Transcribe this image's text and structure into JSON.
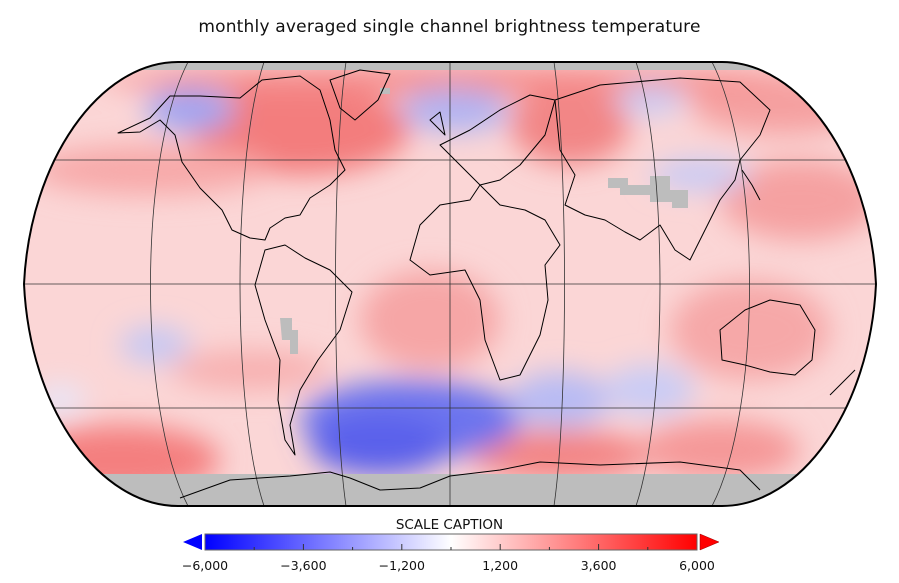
{
  "title": "monthly averaged single channel brightness temperature",
  "map": {
    "projection": "robinson",
    "missing_color": "#bdbdbd",
    "coastline_color": "#000000",
    "graticule_color": "#333333"
  },
  "colorbar": {
    "caption": "SCALE CAPTION",
    "min": -6000,
    "max": 6000,
    "colormap": [
      "#0000ff",
      "#ffffff",
      "#ff0000"
    ],
    "extend": "both",
    "ticks": [
      -6000,
      -3600,
      -1200,
      1200,
      3600,
      6000
    ],
    "tick_labels": [
      "−6,000",
      "−3,600",
      "−1,200",
      "1,200",
      "3,600",
      "6,000"
    ]
  }
}
